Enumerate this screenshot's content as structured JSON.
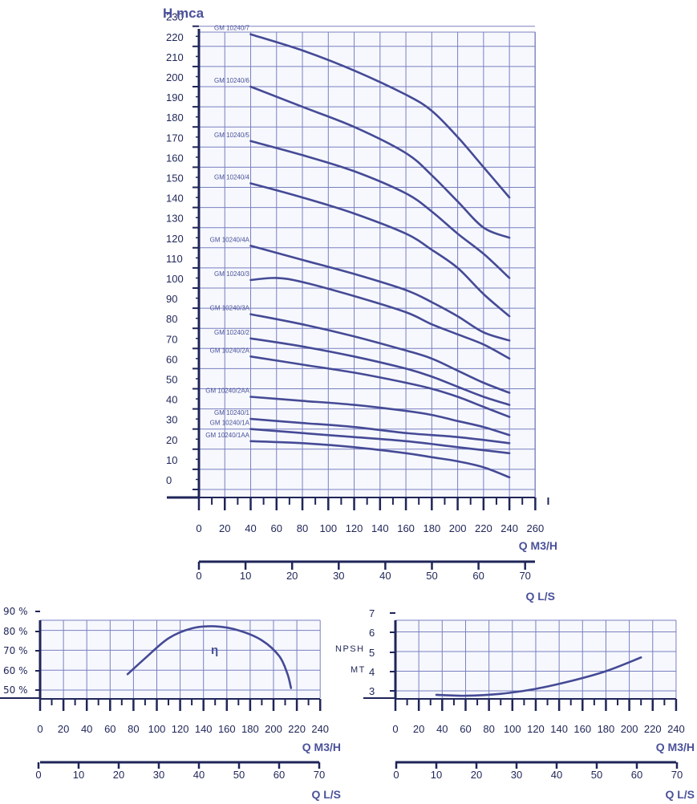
{
  "chart_data": [
    {
      "id": "head",
      "type": "line",
      "ylabel": "H mca",
      "xlabel": "Q  M3/H",
      "xlabel2": "Q L/S",
      "xlim": [
        0,
        260
      ],
      "ylim": [
        -5,
        230
      ],
      "yticks": [
        "0",
        "10",
        "20",
        "30",
        "40",
        "50",
        "60",
        "70",
        "80",
        "90",
        "100",
        "110",
        "120",
        "130",
        "140",
        "150",
        "160",
        "170",
        "180",
        "190",
        "200",
        "210",
        "220",
        "230"
      ],
      "xticks": [
        "0",
        "20",
        "40",
        "60",
        "80",
        "100",
        "120",
        "140",
        "160",
        "180",
        "200",
        "220",
        "240",
        "260"
      ],
      "xticks2": [
        "0",
        "10",
        "20",
        "30",
        "40",
        "50",
        "60",
        "70"
      ],
      "grid": true,
      "series": [
        {
          "name": "GM 10240/7",
          "x": [
            40,
            80,
            120,
            160,
            180,
            200,
            220,
            240
          ],
          "y": [
            226,
            218,
            208,
            196,
            188,
            175,
            160,
            145
          ]
        },
        {
          "name": "GM 10240/6",
          "x": [
            40,
            80,
            120,
            160,
            180,
            200,
            220,
            240
          ],
          "y": [
            200,
            190,
            180,
            167,
            156,
            143,
            130,
            125
          ]
        },
        {
          "name": "GM 10240/5",
          "x": [
            40,
            80,
            120,
            160,
            180,
            200,
            220,
            240
          ],
          "y": [
            173,
            166,
            158,
            147,
            138,
            127,
            117,
            105
          ]
        },
        {
          "name": "GM 10240/4",
          "x": [
            40,
            80,
            120,
            160,
            180,
            200,
            220,
            240
          ],
          "y": [
            152,
            145,
            137,
            127,
            119,
            110,
            97,
            86
          ]
        },
        {
          "name": "GM 10240/4A",
          "x": [
            40,
            80,
            120,
            160,
            180,
            200,
            220,
            240
          ],
          "y": [
            121,
            114,
            107,
            99,
            93,
            86,
            78,
            74
          ]
        },
        {
          "name": "GM 10240/3",
          "x": [
            40,
            60,
            80,
            120,
            160,
            180,
            200,
            220,
            240
          ],
          "y": [
            104,
            105,
            103,
            96,
            88,
            82,
            77,
            72,
            65
          ]
        },
        {
          "name": "GM 10240/3A",
          "x": [
            40,
            80,
            120,
            160,
            180,
            200,
            220,
            240
          ],
          "y": [
            87,
            82,
            76,
            69,
            65,
            59,
            53,
            48
          ]
        },
        {
          "name": "GM 10240/2",
          "x": [
            40,
            80,
            120,
            160,
            180,
            200,
            220,
            240
          ],
          "y": [
            75,
            71,
            66,
            60,
            56,
            51,
            46,
            42
          ]
        },
        {
          "name": "GM 10240/2A",
          "x": [
            40,
            80,
            120,
            160,
            180,
            200,
            220,
            240
          ],
          "y": [
            66,
            62,
            58,
            53,
            50,
            46,
            41,
            36
          ]
        },
        {
          "name": "GM 10240/2AA",
          "x": [
            40,
            80,
            120,
            160,
            180,
            200,
            220,
            240
          ],
          "y": [
            46,
            44,
            42,
            39,
            37,
            34,
            31,
            27
          ]
        },
        {
          "name": "GM 10240/1",
          "x": [
            40,
            80,
            120,
            160,
            200,
            240
          ],
          "y": [
            35,
            33,
            31,
            28,
            26,
            23
          ]
        },
        {
          "name": "GM 10240/1A",
          "x": [
            40,
            80,
            120,
            160,
            200,
            240
          ],
          "y": [
            30,
            28,
            26,
            24,
            21,
            18
          ]
        },
        {
          "name": "GM 10240/1AA",
          "x": [
            40,
            80,
            120,
            160,
            180,
            200,
            220,
            240
          ],
          "y": [
            24,
            23,
            21,
            18,
            16,
            14,
            11,
            6
          ]
        }
      ]
    },
    {
      "id": "efficiency",
      "type": "line",
      "xlabel": "Q   M3/H",
      "xlabel2": "Q L/S",
      "xlim": [
        0,
        240
      ],
      "ylim": [
        45,
        85
      ],
      "yticks": [
        "90 %",
        "80 %",
        "70 %",
        "60 %",
        "50 %"
      ],
      "xticks": [
        "0",
        "20",
        "40",
        "60",
        "80",
        "100",
        "120",
        "140",
        "160",
        "180",
        "200",
        "220",
        "240"
      ],
      "xticks2": [
        "0",
        "10",
        "20",
        "30",
        "40",
        "50",
        "60",
        "70"
      ],
      "grid": true,
      "annotation": "η",
      "series": [
        {
          "x": [
            75,
            90,
            110,
            130,
            150,
            170,
            190,
            205,
            212,
            215
          ],
          "y": [
            58,
            66,
            76,
            81,
            82,
            80,
            75,
            67,
            58,
            51
          ]
        }
      ]
    },
    {
      "id": "npsh",
      "type": "line",
      "ylabel": "NPSH MT",
      "xlabel": "Q   M3/H",
      "xlabel2": "Q L/S",
      "xlim": [
        0,
        240
      ],
      "ylim": [
        2.5,
        7
      ],
      "yticks": [
        "3",
        "4",
        "5",
        "6",
        "7"
      ],
      "xticks": [
        "0",
        "20",
        "40",
        "60",
        "80",
        "100",
        "120",
        "140",
        "160",
        "180",
        "200",
        "220",
        "240"
      ],
      "xticks2": [
        "0",
        "10",
        "20",
        "30",
        "40",
        "50",
        "60",
        "70"
      ],
      "grid": true,
      "series": [
        {
          "x": [
            35,
            60,
            90,
            120,
            150,
            180,
            210
          ],
          "y": [
            2.8,
            2.75,
            2.85,
            3.1,
            3.5,
            4.0,
            4.7
          ]
        }
      ]
    }
  ]
}
